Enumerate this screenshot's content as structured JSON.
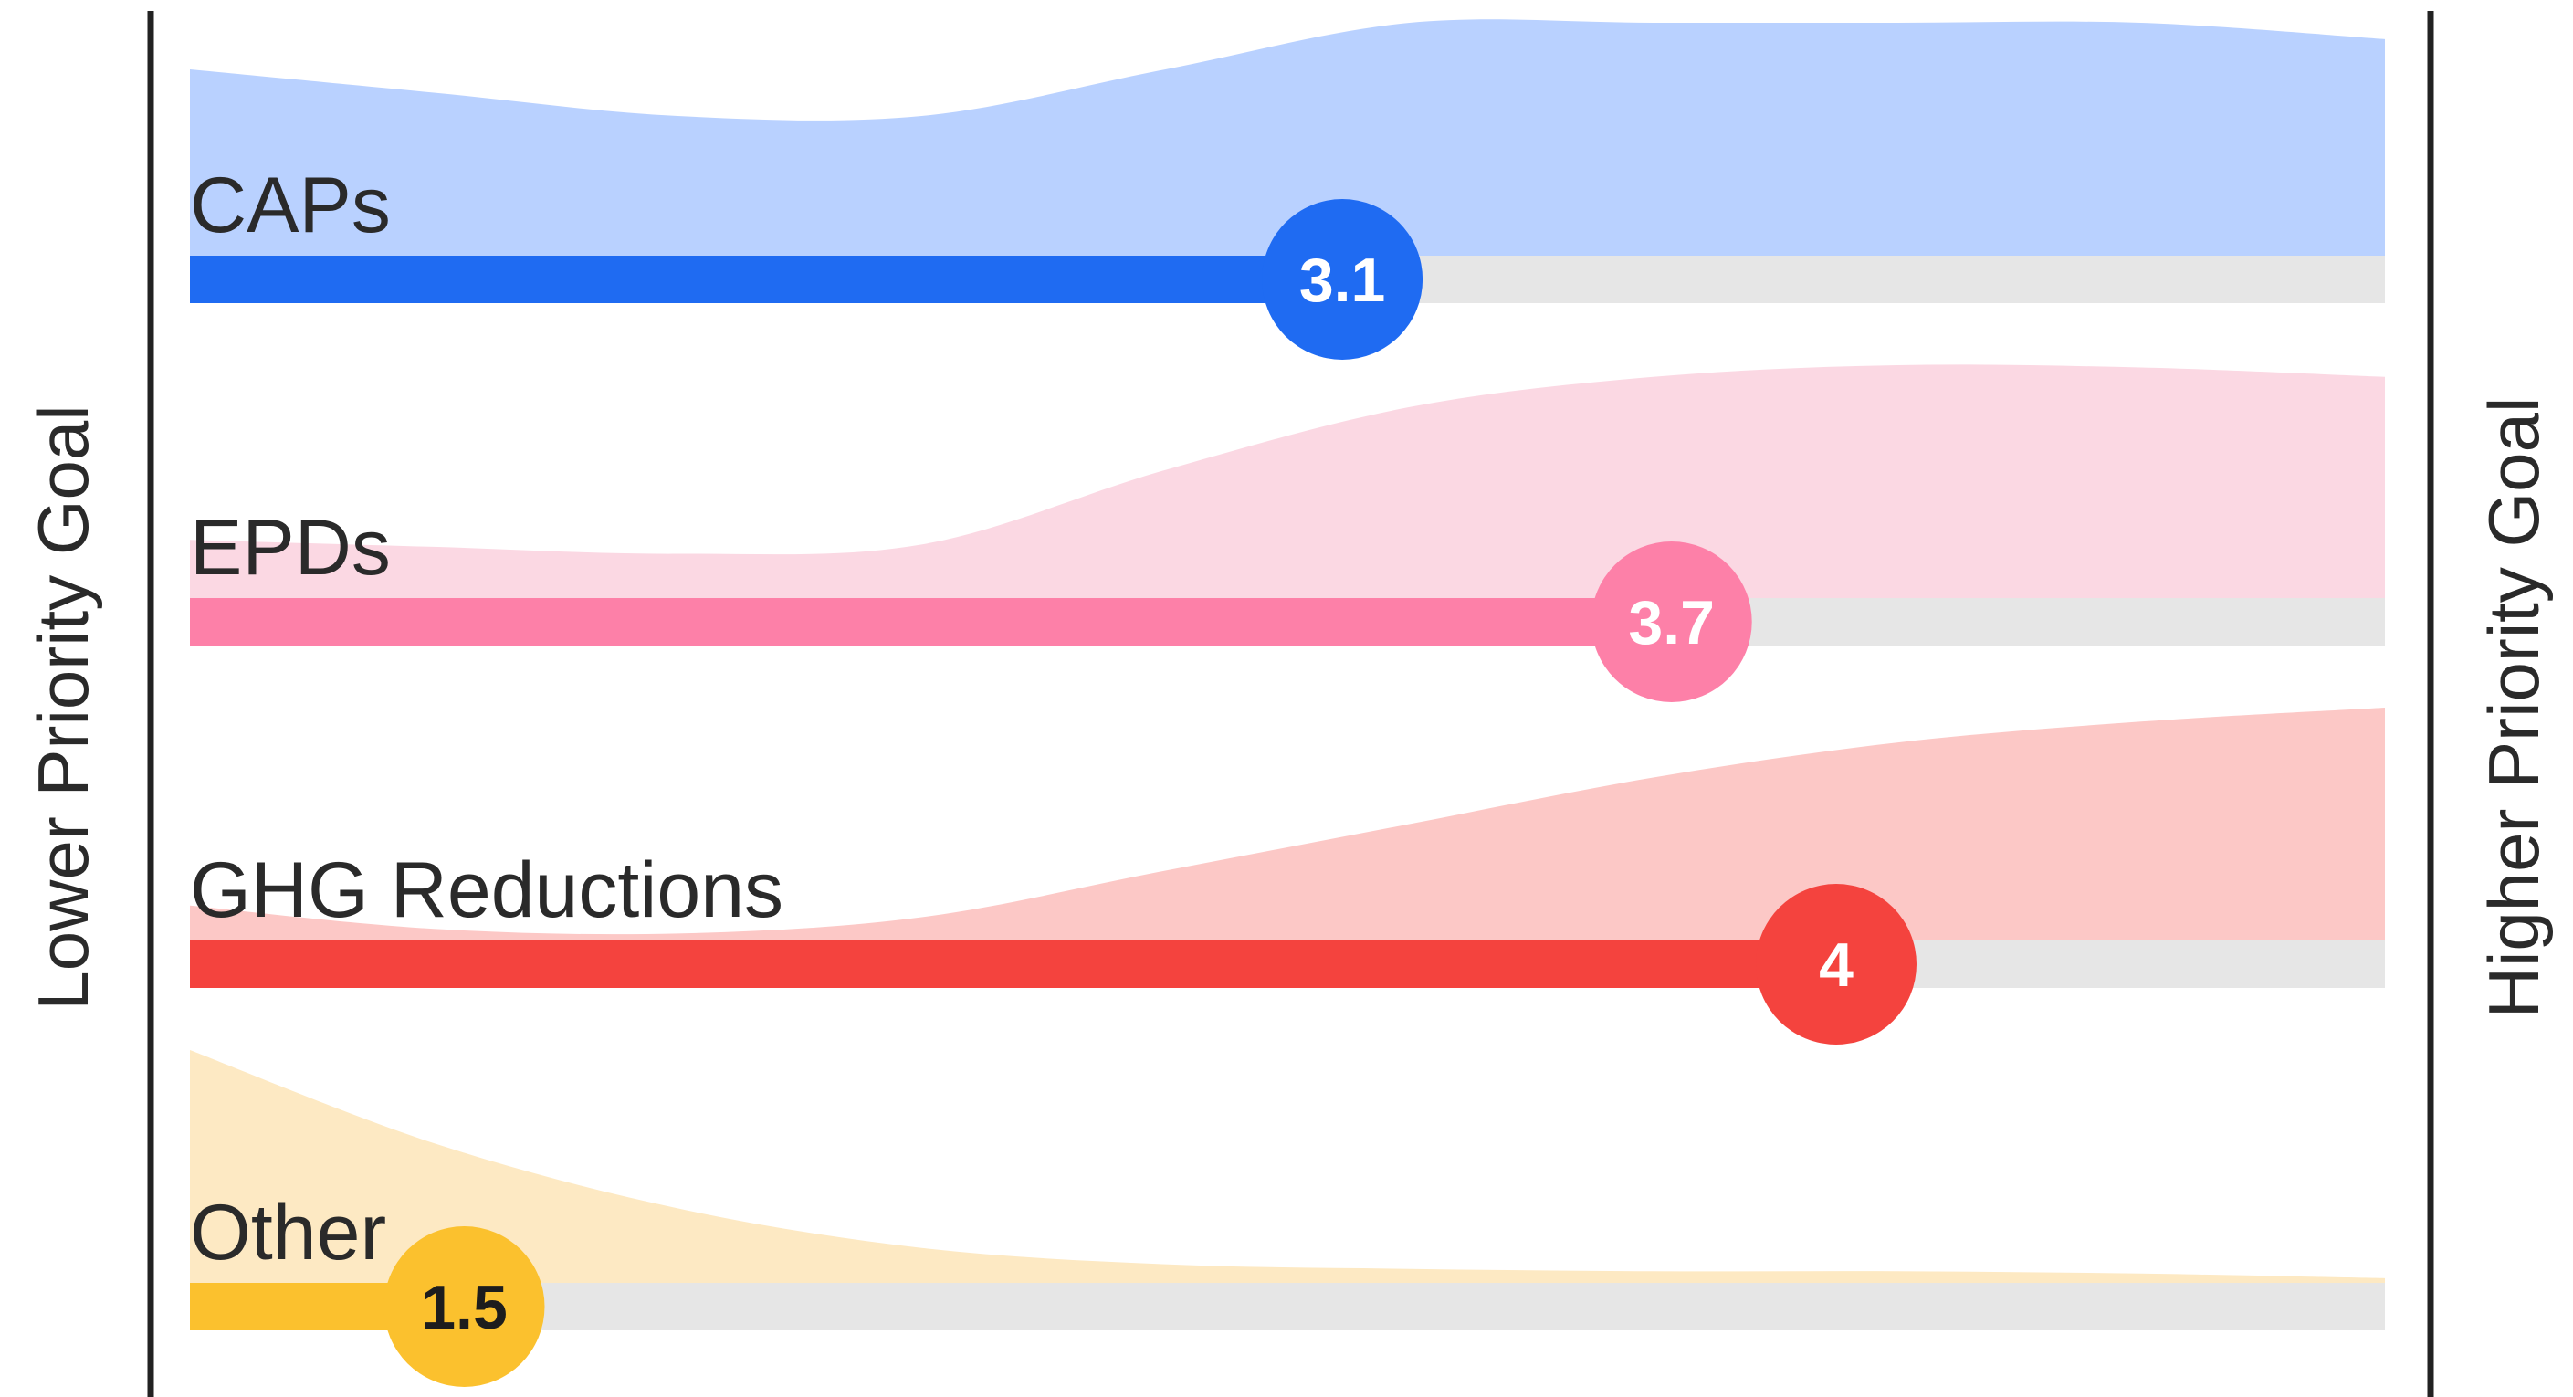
{
  "chart_data": {
    "type": "ridgeline-bar",
    "left_axis_label": "Lower Priority Goal",
    "right_axis_label": "Higher Priority Goal",
    "scale": [
      1,
      5
    ],
    "series": [
      {
        "name": "CAPs",
        "value": 3.1,
        "value_label": "3.1",
        "bar_color": "#1f6bf2",
        "fill_color": "#b9d1ff",
        "label_text_color": "#ffffff",
        "distribution": [
          0.8,
          0.7,
          0.6,
          0.6,
          0.8,
          1.0,
          1.0,
          1.0,
          1.0,
          0.93
        ]
      },
      {
        "name": "EPDs",
        "value": 3.7,
        "value_label": "3.7",
        "bar_color": "#fd80a8",
        "fill_color": "#fbd8e3",
        "label_text_color": "#ffffff",
        "distribution": [
          0.25,
          0.22,
          0.19,
          0.23,
          0.55,
          0.82,
          0.95,
          1.0,
          0.99,
          0.95
        ]
      },
      {
        "name": "GHG Reductions",
        "value": 4,
        "value_label": "4",
        "bar_color": "#f4433e",
        "fill_color": "#fcc8c6",
        "label_text_color": "#ffffff",
        "distribution": [
          0.15,
          0.05,
          0.03,
          0.1,
          0.3,
          0.5,
          0.7,
          0.85,
          0.94,
          1.0
        ]
      },
      {
        "name": "Other",
        "value": 1.5,
        "value_label": "1.5",
        "bar_color": "#fbc12e",
        "fill_color": "#fde9c3",
        "label_text_color": "#1d1d1d",
        "distribution": [
          1.0,
          0.6,
          0.32,
          0.15,
          0.08,
          0.06,
          0.05,
          0.05,
          0.04,
          0.02
        ]
      }
    ]
  }
}
